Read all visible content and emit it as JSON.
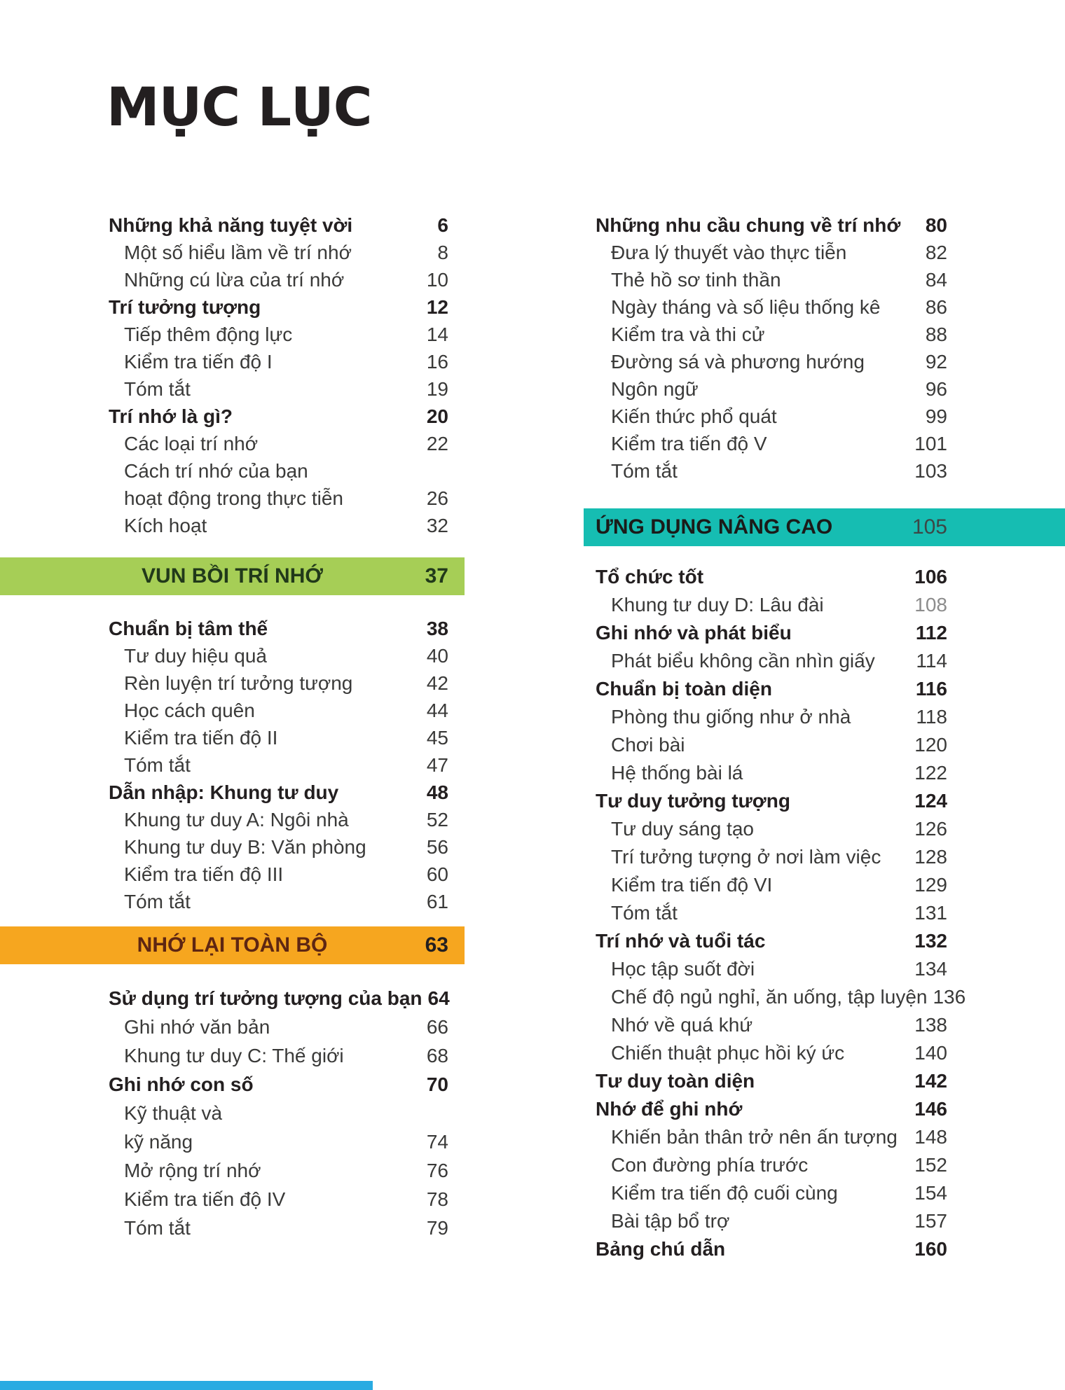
{
  "title": "MỤC LỤC",
  "colors": {
    "green_bar": "#a6ce56",
    "green_text": "#21391a",
    "green_page": "#21391a",
    "orange_bar": "#f6a61f",
    "orange_text": "#5e2612",
    "orange_page": "#231f20",
    "teal_bar": "#16bdb2",
    "teal_text": "#1b1b19",
    "teal_page": "#3c4746",
    "accent_blue": "#29abe2"
  },
  "left_column": {
    "blocks": [
      {
        "type": "rows",
        "rows": [
          {
            "label": "Những khả năng tuyệt vời",
            "page": "6",
            "bold": true
          },
          {
            "label": "Một số hiểu lầm về trí nhớ",
            "page": "8",
            "indent": true
          },
          {
            "label": "Những cú lừa của trí nhớ",
            "page": "10",
            "indent": true
          },
          {
            "label": "Trí tưởng tượng",
            "page": "12",
            "bold": true
          },
          {
            "label": "Tiếp thêm động lực",
            "page": "14",
            "indent": true
          },
          {
            "label": "Kiểm tra tiến độ I",
            "page": "16",
            "indent": true
          },
          {
            "label": "Tóm tắt",
            "page": "19",
            "indent": true
          },
          {
            "label": "Trí nhớ là gì?",
            "page": "20",
            "bold": true
          },
          {
            "label": "Các loại trí nhớ",
            "page": "22",
            "indent": true
          },
          {
            "label": "Cách trí nhớ của bạn",
            "page": "",
            "indent": true
          },
          {
            "label": "hoạt động trong thực tiễn",
            "page": "26",
            "indent": true
          },
          {
            "label": "Kích hoạt",
            "page": "32",
            "indent": true
          }
        ]
      },
      {
        "type": "bar",
        "label": "VUN BỒI TRÍ NHỚ",
        "page": "37",
        "bg": "green_bar",
        "fg": "green_text",
        "pg": "green_page"
      },
      {
        "type": "rows",
        "rows": [
          {
            "label": "Chuẩn bị tâm thế",
            "page": "38",
            "bold": true
          },
          {
            "label": "Tư duy hiệu quả",
            "page": "40",
            "indent": true
          },
          {
            "label": "Rèn luyện trí tưởng tượng",
            "page": "42",
            "indent": true
          },
          {
            "label": "Học cách quên",
            "page": "44",
            "indent": true
          },
          {
            "label": "Kiểm tra tiến độ II",
            "page": "45",
            "indent": true
          },
          {
            "label": "Tóm tắt",
            "page": "47",
            "indent": true
          },
          {
            "label": "Dẫn nhập: Khung tư duy",
            "page": "48",
            "bold": true
          },
          {
            "label": "Khung tư duy A: Ngôi nhà",
            "page": "52",
            "indent": true
          },
          {
            "label": "Khung tư duy B: Văn phòng",
            "page": "56",
            "indent": true
          },
          {
            "label": "Kiểm tra tiến độ III",
            "page": "60",
            "indent": true
          },
          {
            "label": "Tóm tắt",
            "page": "61",
            "indent": true
          }
        ]
      },
      {
        "type": "bar",
        "label": "NHỚ LẠI TOÀN BỘ",
        "page": "63",
        "bg": "orange_bar",
        "fg": "orange_text",
        "pg": "orange_page"
      },
      {
        "type": "rows",
        "rows": [
          {
            "label": "Sử dụng trí tưởng tượng của bạn",
            "page": "64",
            "bold": true
          },
          {
            "label": "Ghi nhớ văn bản",
            "page": "66",
            "indent": true
          },
          {
            "label": "Khung tư duy C: Thế giới",
            "page": "68",
            "indent": true
          },
          {
            "label": "Ghi nhớ con số",
            "page": "70",
            "bold": true
          },
          {
            "label": "Kỹ thuật và",
            "page": "",
            "indent": true
          },
          {
            "label": "kỹ năng",
            "page": "74",
            "indent": true
          },
          {
            "label": "Mở rộng trí nhớ",
            "page": "76",
            "indent": true
          },
          {
            "label": "Kiểm tra tiến độ IV",
            "page": "78",
            "indent": true
          },
          {
            "label": "Tóm tắt",
            "page": "79",
            "indent": true
          }
        ]
      }
    ]
  },
  "right_column": {
    "blocks": [
      {
        "type": "rows",
        "rows": [
          {
            "label": "Những nhu cầu chung về trí nhớ",
            "page": "80",
            "bold": true
          },
          {
            "label": "Đưa lý thuyết vào thực tiễn",
            "page": "82",
            "indent": true
          },
          {
            "label": "Thẻ hồ sơ tinh thần",
            "page": "84",
            "indent": true
          },
          {
            "label": "Ngày tháng và số liệu thống kê",
            "page": "86",
            "indent": true
          },
          {
            "label": "Kiểm tra và thi cử",
            "page": "88",
            "indent": true
          },
          {
            "label": "Đường sá và phương hướng",
            "page": "92",
            "indent": true
          },
          {
            "label": "Ngôn ngữ",
            "page": "96",
            "indent": true
          },
          {
            "label": "Kiến thức phổ quát",
            "page": "99",
            "indent": true
          },
          {
            "label": "Kiểm tra tiến độ V",
            "page": "101",
            "indent": true
          },
          {
            "label": "Tóm tắt",
            "page": "103",
            "indent": true
          }
        ]
      },
      {
        "type": "bar",
        "label": "ỨNG DỤNG NÂNG CAO",
        "page": "105",
        "bg": "teal_bar",
        "fg": "teal_text",
        "pg": "teal_page"
      },
      {
        "type": "rows",
        "rows": [
          {
            "label": "Tổ chức tốt",
            "page": "106",
            "bold": true
          },
          {
            "label": "Khung tư duy D: Lâu đài",
            "page": "108",
            "indent": true,
            "dim": true
          },
          {
            "label": "Ghi nhớ và phát biểu",
            "page": "112",
            "bold": true
          },
          {
            "label": "Phát biểu không cần nhìn giấy",
            "page": "114",
            "indent": true
          },
          {
            "label": "Chuẩn bị toàn diện",
            "page": "116",
            "bold": true
          },
          {
            "label": "Phòng thu giống như ở nhà",
            "page": "118",
            "indent": true
          },
          {
            "label": "Chơi bài",
            "page": "120",
            "indent": true
          },
          {
            "label": "Hệ thống bài lá",
            "page": "122",
            "indent": true
          },
          {
            "label": "Tư duy tưởng tượng",
            "page": "124",
            "bold": true
          },
          {
            "label": "Tư duy sáng tạo",
            "page": "126",
            "indent": true
          },
          {
            "label": "Trí tưởng tượng ở nơi làm việc",
            "page": "128",
            "indent": true
          },
          {
            "label": "Kiểm tra tiến độ VI",
            "page": "129",
            "indent": true
          },
          {
            "label": "Tóm tắt",
            "page": "131",
            "indent": true
          },
          {
            "label": "Trí nhớ và tuổi tác",
            "page": "132",
            "bold": true
          },
          {
            "label": "Học tập suốt đời",
            "page": "134",
            "indent": true
          },
          {
            "label": "Chế độ ngủ nghỉ, ăn uống, tập luyện",
            "page": "136",
            "indent": true
          },
          {
            "label": "Nhớ về quá khứ",
            "page": "138",
            "indent": true
          },
          {
            "label": "Chiến thuật phục hồi ký ức",
            "page": "140",
            "indent": true
          },
          {
            "label": "Tư duy toàn diện",
            "page": "142",
            "bold": true
          },
          {
            "label": "Nhớ để ghi nhớ",
            "page": "146",
            "bold": true
          },
          {
            "label": "Khiến bản thân trở nên ấn tượng",
            "page": "148",
            "indent": true
          },
          {
            "label": "Con đường phía trước",
            "page": "152",
            "indent": true
          },
          {
            "label": "Kiểm tra tiến độ cuối cùng",
            "page": "154",
            "indent": true
          },
          {
            "label": "Bài tập bổ trợ",
            "page": "157",
            "indent": true
          },
          {
            "label": "Bảng chú dẫn",
            "page": "160",
            "bold": true
          }
        ]
      }
    ]
  }
}
